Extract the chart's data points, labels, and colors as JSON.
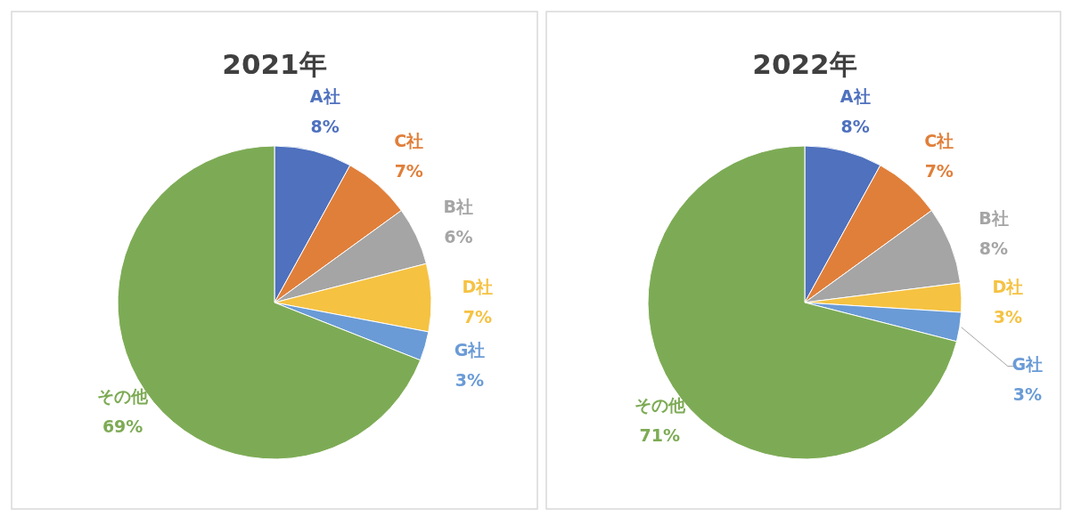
{
  "chart_data": [
    {
      "type": "pie",
      "title": "2021年",
      "categories": [
        "A社",
        "C社",
        "B社",
        "D社",
        "G社",
        "その他"
      ],
      "values": [
        8,
        7,
        6,
        7,
        3,
        69
      ],
      "value_labels": [
        "8%",
        "7%",
        "6%",
        "7%",
        "3%",
        "69%"
      ],
      "colors": [
        "#4f71be",
        "#e07f3a",
        "#a5a5a5",
        "#f5c242",
        "#6a9bd6",
        "#7dab55"
      ],
      "legend": false
    },
    {
      "type": "pie",
      "title": "2022年",
      "categories": [
        "A社",
        "C社",
        "B社",
        "D社",
        "G社",
        "その他"
      ],
      "values": [
        8,
        7,
        8,
        3,
        3,
        71
      ],
      "value_labels": [
        "8%",
        "7%",
        "8%",
        "3%",
        "3%",
        "71%"
      ],
      "colors": [
        "#4f71be",
        "#e07f3a",
        "#a5a5a5",
        "#f5c242",
        "#6a9bd6",
        "#7dab55"
      ],
      "legend": false
    }
  ]
}
